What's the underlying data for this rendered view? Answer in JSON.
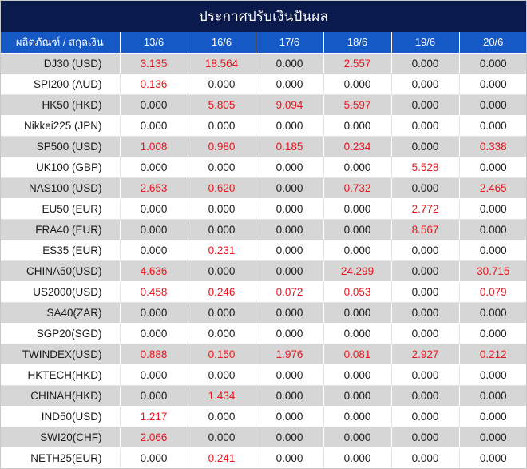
{
  "title": "ประกาศปรับเงินปันผล",
  "header": {
    "product_label": "ผลิตภัณฑ์ / สกุลเงิน",
    "dates": [
      "13/6",
      "16/6",
      "17/6",
      "18/6",
      "19/6",
      "20/6"
    ]
  },
  "colors": {
    "title_bg": "#0b1a4d",
    "header_bg": "#1459c6",
    "stripe_bg": "#d6d6d6",
    "nonzero_text": "#e8141e",
    "zero_text": "#1a1a1a"
  },
  "rows": [
    {
      "name": "DJ30 (USD)",
      "values": [
        "3.135",
        "18.564",
        "0.000",
        "2.557",
        "0.000",
        "0.000"
      ]
    },
    {
      "name": "SPI200 (AUD)",
      "values": [
        "0.136",
        "0.000",
        "0.000",
        "0.000",
        "0.000",
        "0.000"
      ]
    },
    {
      "name": "HK50 (HKD)",
      "values": [
        "0.000",
        "5.805",
        "9.094",
        "5.597",
        "0.000",
        "0.000"
      ]
    },
    {
      "name": "Nikkei225 (JPN)",
      "values": [
        "0.000",
        "0.000",
        "0.000",
        "0.000",
        "0.000",
        "0.000"
      ]
    },
    {
      "name": "SP500 (USD)",
      "values": [
        "1.008",
        "0.980",
        "0.185",
        "0.234",
        "0.000",
        "0.338"
      ]
    },
    {
      "name": "UK100 (GBP)",
      "values": [
        "0.000",
        "0.000",
        "0.000",
        "0.000",
        "5.528",
        "0.000"
      ]
    },
    {
      "name": "NAS100 (USD)",
      "values": [
        "2.653",
        "0.620",
        "0.000",
        "0.732",
        "0.000",
        "2.465"
      ]
    },
    {
      "name": "EU50 (EUR)",
      "values": [
        "0.000",
        "0.000",
        "0.000",
        "0.000",
        "2.772",
        "0.000"
      ]
    },
    {
      "name": "FRA40 (EUR)",
      "values": [
        "0.000",
        "0.000",
        "0.000",
        "0.000",
        "8.567",
        "0.000"
      ]
    },
    {
      "name": "ES35 (EUR)",
      "values": [
        "0.000",
        "0.231",
        "0.000",
        "0.000",
        "0.000",
        "0.000"
      ]
    },
    {
      "name": "CHINA50(USD)",
      "values": [
        "4.636",
        "0.000",
        "0.000",
        "24.299",
        "0.000",
        "30.715"
      ]
    },
    {
      "name": "US2000(USD)",
      "values": [
        "0.458",
        "0.246",
        "0.072",
        "0.053",
        "0.000",
        "0.079"
      ]
    },
    {
      "name": "SA40(ZAR)",
      "values": [
        "0.000",
        "0.000",
        "0.000",
        "0.000",
        "0.000",
        "0.000"
      ]
    },
    {
      "name": "SGP20(SGD)",
      "values": [
        "0.000",
        "0.000",
        "0.000",
        "0.000",
        "0.000",
        "0.000"
      ]
    },
    {
      "name": "TWINDEX(USD)",
      "values": [
        "0.888",
        "0.150",
        "1.976",
        "0.081",
        "2.927",
        "0.212"
      ]
    },
    {
      "name": "HKTECH(HKD)",
      "values": [
        "0.000",
        "0.000",
        "0.000",
        "0.000",
        "0.000",
        "0.000"
      ]
    },
    {
      "name": "CHINAH(HKD)",
      "values": [
        "0.000",
        "1.434",
        "0.000",
        "0.000",
        "0.000",
        "0.000"
      ]
    },
    {
      "name": "IND50(USD)",
      "values": [
        "1.217",
        "0.000",
        "0.000",
        "0.000",
        "0.000",
        "0.000"
      ]
    },
    {
      "name": "SWI20(CHF)",
      "values": [
        "2.066",
        "0.000",
        "0.000",
        "0.000",
        "0.000",
        "0.000"
      ]
    },
    {
      "name": "NETH25(EUR)",
      "values": [
        "0.000",
        "0.241",
        "0.000",
        "0.000",
        "0.000",
        "0.000"
      ]
    }
  ]
}
